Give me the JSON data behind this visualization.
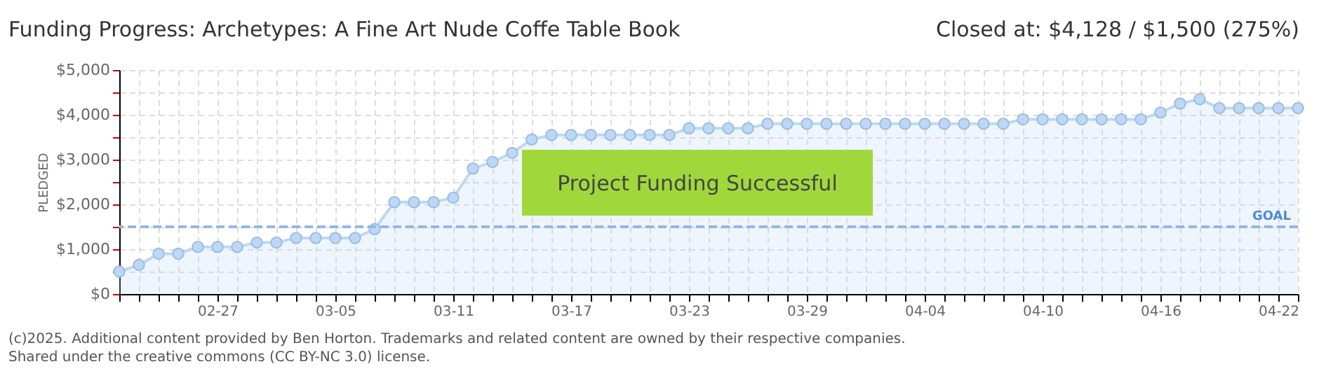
{
  "chart_data": {
    "type": "area",
    "title": "Funding Progress: Archetypes: A Fine Art Nude Coffe Table Book",
    "subtitle": "Closed at: $4,128 / $1,500 (275%)",
    "ylabel": "PLEDGED",
    "categories": [
      null,
      null,
      null,
      null,
      null,
      "02-27",
      null,
      null,
      null,
      null,
      null,
      "03-05",
      null,
      null,
      null,
      null,
      null,
      "03-11",
      null,
      null,
      null,
      null,
      null,
      "03-17",
      null,
      null,
      null,
      null,
      null,
      "03-23",
      null,
      null,
      null,
      null,
      null,
      "03-29",
      null,
      null,
      null,
      null,
      null,
      "04-04",
      null,
      null,
      null,
      null,
      null,
      "04-10",
      null,
      null,
      null,
      null,
      null,
      "04-16",
      null,
      null,
      null,
      null,
      null,
      "04-22",
      null
    ],
    "series": [
      {
        "color": "#bcd8f5",
        "values": [
          500,
          650,
          900,
          900,
          1050,
          1050,
          1050,
          1150,
          1150,
          1250,
          1250,
          1250,
          1250,
          1450,
          2050,
          2050,
          2050,
          2150,
          2800,
          2950,
          3150,
          3450,
          3550,
          3550,
          3550,
          3550,
          3550,
          3550,
          3550,
          3700,
          3700,
          3700,
          3700,
          3800,
          3800,
          3800,
          3800,
          3800,
          3800,
          3800,
          3800,
          3800,
          3800,
          3800,
          3800,
          3800,
          3900,
          3900,
          3900,
          3900,
          3900,
          3900,
          3900,
          4050,
          4250,
          4350,
          4150,
          4150,
          4150,
          4150,
          4150
        ]
      }
    ],
    "ylim": [
      0,
      5000
    ],
    "yticks": [
      {
        "value": 0,
        "label": "$0"
      },
      {
        "value": 500,
        "label": null
      },
      {
        "value": 1000,
        "label": "$1,000"
      },
      {
        "value": 1500,
        "label": null
      },
      {
        "value": 2000,
        "label": "$2,000"
      },
      {
        "value": 2500,
        "label": null
      },
      {
        "value": 3000,
        "label": "$3,000"
      },
      {
        "value": 3500,
        "label": null
      },
      {
        "value": 4000,
        "label": "$4,000"
      },
      {
        "value": 4500,
        "label": null
      },
      {
        "value": 5000,
        "label": "$5,000"
      }
    ],
    "grid": true,
    "marker": "circle",
    "ref_lines": [
      {
        "axis": "y",
        "value": 1500,
        "label": "GOAL",
        "color": "#8fb8e8",
        "line_style": "dashed"
      }
    ],
    "annotations": [
      "Project Funding Successful",
      "(c)2025. Additional content provided by Ben Horton. Trademarks and related content are owned by their respective companies.",
      "Shared under the creative commons (CC BY-NC 3.0) license."
    ]
  }
}
